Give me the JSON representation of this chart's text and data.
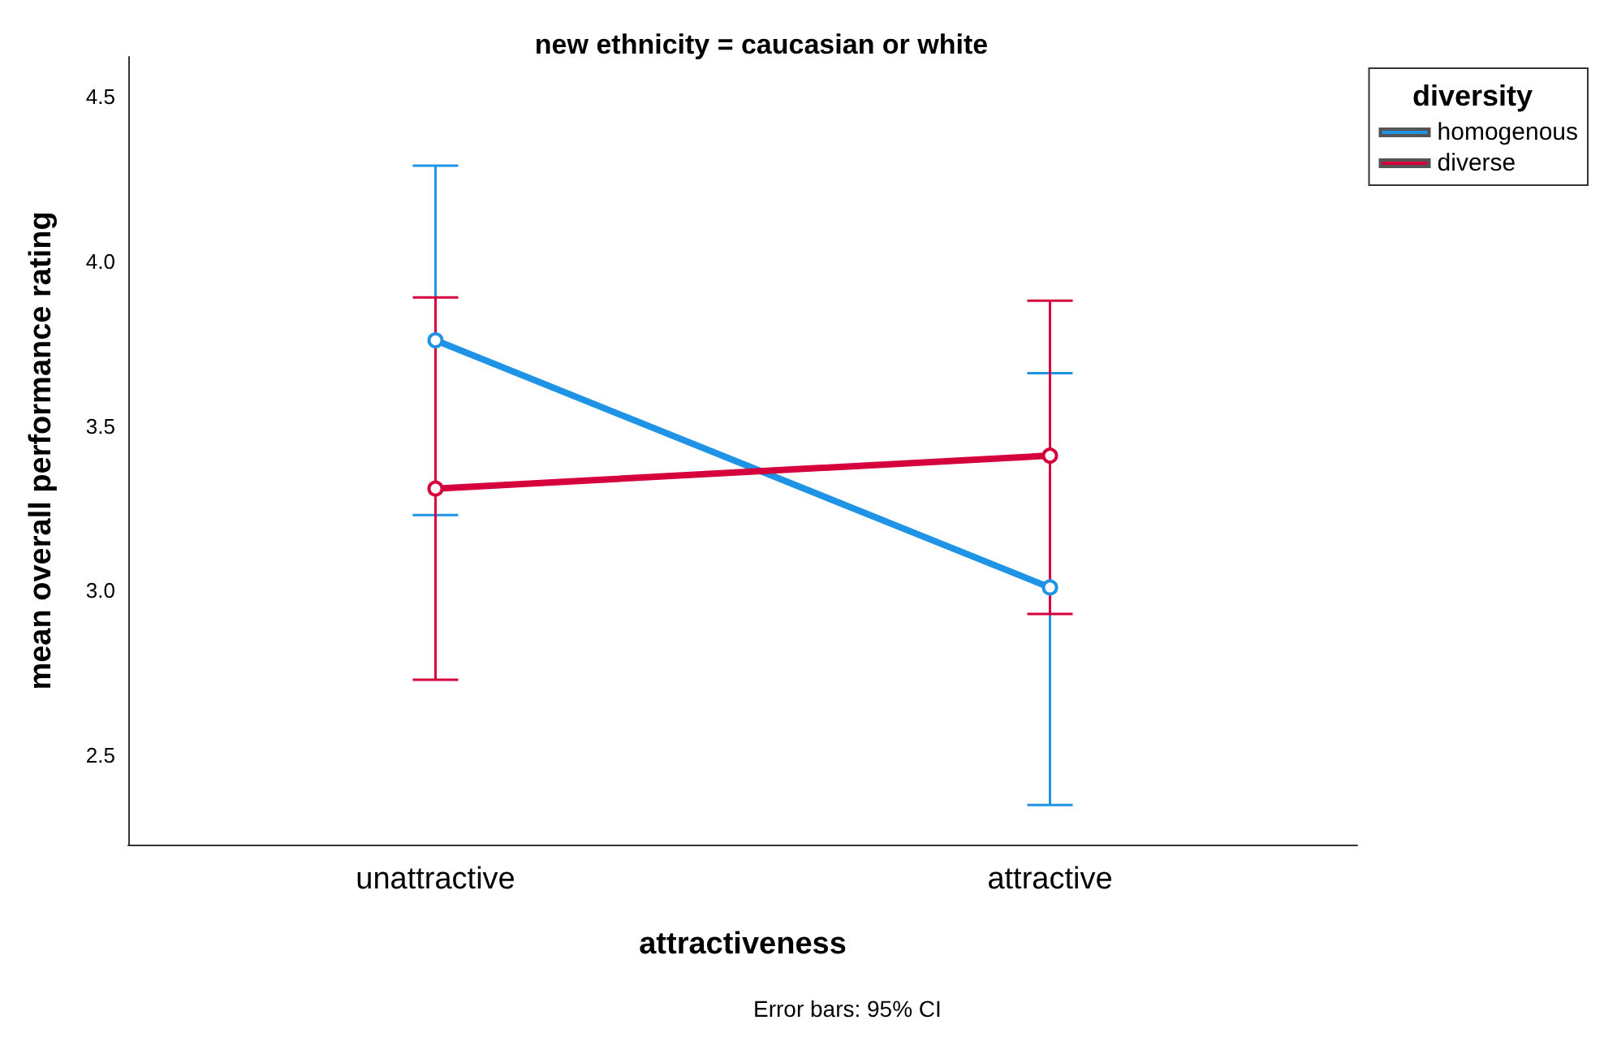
{
  "chart_data": {
    "type": "line",
    "title": "new ethnicity = caucasian or white",
    "xlabel": "attractiveness",
    "ylabel": "mean overall performance rating",
    "legend_title": "diversity",
    "categories": [
      "unattractive",
      "attractive"
    ],
    "series": [
      {
        "name": "homogenous",
        "color": "#1f93e6",
        "values": [
          3.76,
          3.01
        ],
        "errors": [
          [
            3.23,
            4.29
          ],
          [
            2.35,
            3.66
          ]
        ]
      },
      {
        "name": "diverse",
        "color": "#d6003c",
        "values": [
          3.31,
          3.41
        ],
        "errors": [
          [
            2.73,
            3.89
          ],
          [
            2.93,
            3.88
          ]
        ]
      }
    ],
    "ylim": [
      2.23,
      4.62
    ],
    "yticks": [
      2.5,
      {
        "value": 3,
        "label": "3.0"
      },
      3.5,
      {
        "value": 4,
        "label": "4.0"
      },
      4.5
    ],
    "grid": false,
    "legend": "top right",
    "marker": "circle",
    "line_style": "solid",
    "annotations": [
      "Error bars: 95% CI"
    ]
  }
}
